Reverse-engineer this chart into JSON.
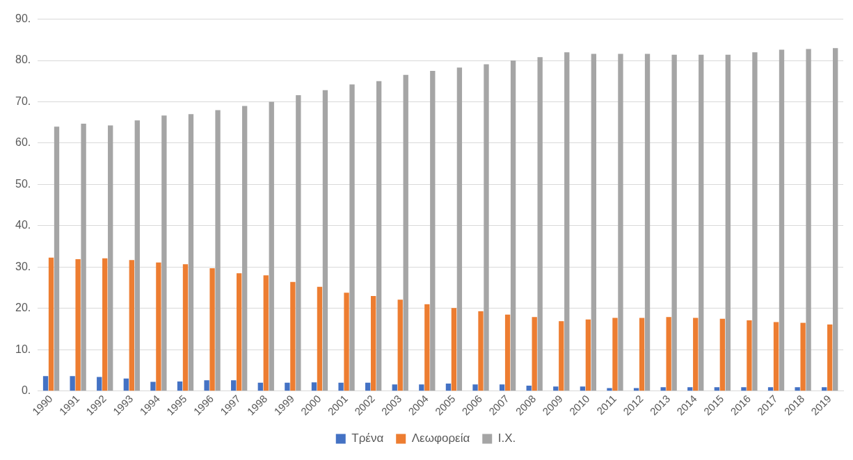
{
  "chart_data": {
    "type": "bar",
    "categories": [
      "1990",
      "1991",
      "1992",
      "1993",
      "1994",
      "1995",
      "1996",
      "1997",
      "1998",
      "1999",
      "2000",
      "2001",
      "2002",
      "2003",
      "2004",
      "2005",
      "2006",
      "2007",
      "2008",
      "2009",
      "2010",
      "2011",
      "2012",
      "2013",
      "2014",
      "2015",
      "2016",
      "2017",
      "2018",
      "2019"
    ],
    "series": [
      {
        "name": "Τρένα",
        "color": "#4472c4",
        "values": [
          3.6,
          3.6,
          3.4,
          3.0,
          2.2,
          2.3,
          2.6,
          2.6,
          2.0,
          2.0,
          2.1,
          2.0,
          2.0,
          1.6,
          1.6,
          1.8,
          1.6,
          1.6,
          1.3,
          1.1,
          1.1,
          0.7,
          0.7,
          0.9,
          0.9,
          0.9,
          0.9,
          0.9,
          0.9,
          0.9
        ]
      },
      {
        "name": "Λεωφορεία",
        "color": "#ed7d31",
        "values": [
          32.3,
          31.9,
          32.1,
          31.7,
          31.1,
          30.7,
          29.7,
          28.5,
          28.0,
          26.4,
          25.2,
          23.8,
          23.0,
          22.1,
          21.0,
          20.1,
          19.3,
          18.5,
          17.9,
          16.9,
          17.3,
          17.7,
          17.7,
          17.9,
          17.7,
          17.5,
          17.1,
          16.7,
          16.5,
          16.1
        ]
      },
      {
        "name": "Ι.Χ.",
        "color": "#a5a5a5",
        "values": [
          64.0,
          64.7,
          64.3,
          65.5,
          66.7,
          67.0,
          68.0,
          69.0,
          70.0,
          71.6,
          72.8,
          74.2,
          75.0,
          76.5,
          77.5,
          78.3,
          79.1,
          80.0,
          80.8,
          82.0,
          81.6,
          81.6,
          81.6,
          81.4,
          81.4,
          81.4,
          82.0,
          82.6,
          82.8,
          83.0
        ]
      }
    ],
    "ylim": [
      0,
      90
    ],
    "yticks": [
      {
        "value": 0,
        "label": "0."
      },
      {
        "value": 10,
        "label": "10."
      },
      {
        "value": 20,
        "label": "20."
      },
      {
        "value": 30,
        "label": "30."
      },
      {
        "value": 40,
        "label": "40."
      },
      {
        "value": 50,
        "label": "50."
      },
      {
        "value": 60,
        "label": "60."
      },
      {
        "value": 70,
        "label": "70."
      },
      {
        "value": 80,
        "label": "80."
      },
      {
        "value": 90,
        "label": "90."
      }
    ],
    "grid": "y",
    "legend": "bottom"
  }
}
